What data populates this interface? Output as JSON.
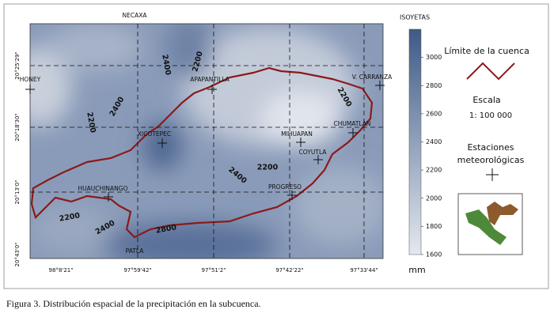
{
  "map": {
    "top_label": "NECAXA",
    "lat_labels": [
      "20°25'29\"",
      "20°18'30\"",
      "20°13'0\"",
      "20°43'0\""
    ],
    "lon_labels": [
      "98°8'21\"",
      "97°59'42\"",
      "97°51'2\"",
      "97°42'22\"",
      "97°33'44\""
    ],
    "stations": [
      "HONEY",
      "APAPANTILLA",
      "V. CARRANZA",
      "XICOTEPEC",
      "MIHUAPAN",
      "CHUMATLAN",
      "COYUTLA",
      "HUAUCHINANGO",
      "PROGRESO",
      "PATLA"
    ],
    "contour_labels": [
      "2400",
      "2200",
      "2400",
      "2200",
      "2200",
      "2200",
      "2400",
      "2200",
      "2400",
      "2800"
    ]
  },
  "colorbar": {
    "title": "ISOYETAS",
    "unit": "mm",
    "lim": [
      1600,
      3200
    ],
    "ticks": [
      1600,
      1800,
      2000,
      2200,
      2400,
      2600,
      2800,
      3000
    ]
  },
  "legend": {
    "boundary": "Límite de la cuenca",
    "scale_title": "Escala",
    "scale": "1: 100 000",
    "stations_title": [
      "Estaciones",
      "meteorológicas"
    ]
  },
  "caption": "Figura 3. Distribución espacial de la precipitación en la subcuenca."
}
